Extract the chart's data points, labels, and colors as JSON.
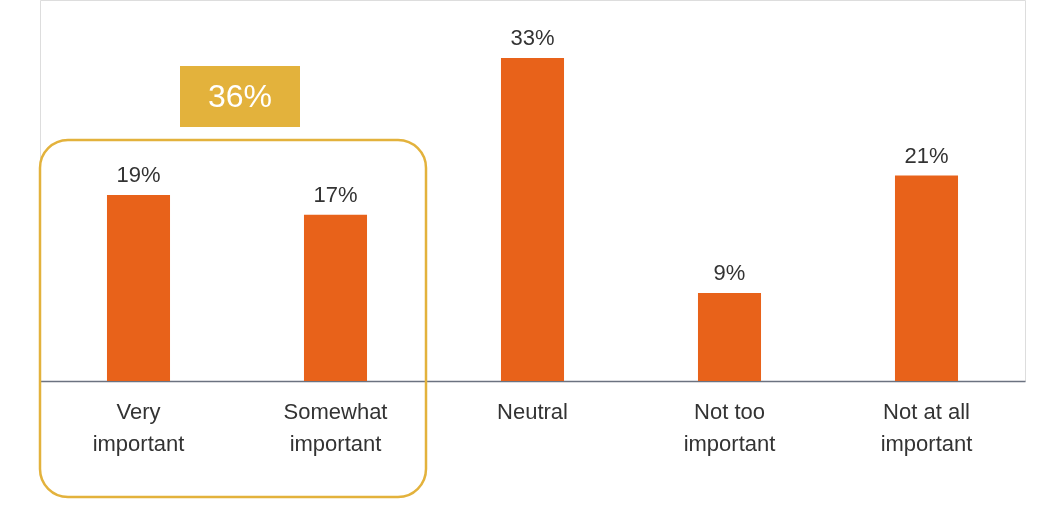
{
  "chart_data": {
    "type": "bar",
    "categories": [
      "Very important",
      "Somewhat important",
      "Neutral",
      "Not too important",
      "Not at all important"
    ],
    "values": [
      19,
      17,
      33,
      9,
      21
    ],
    "color": "#e8621a",
    "data_labels": true,
    "value_labels": [
      "19%",
      "17%",
      "33%",
      "9%",
      "21%"
    ],
    "annotations": [
      "36%"
    ]
  }
}
